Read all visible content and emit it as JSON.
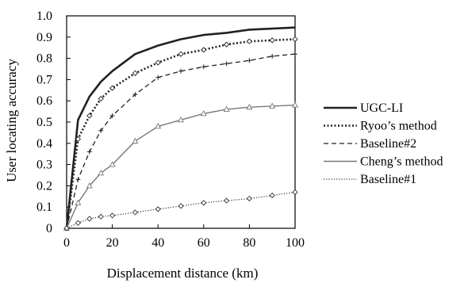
{
  "chart_data": {
    "type": "line",
    "title": "",
    "xlabel": "Displacement distance (km)",
    "ylabel": "User locating accuracy",
    "xlim": [
      0,
      100
    ],
    "ylim": [
      0,
      1.0
    ],
    "x_ticks": [
      "0",
      "20",
      "40",
      "60",
      "80",
      "100"
    ],
    "y_ticks": [
      "0",
      "0.1",
      "0.2",
      "0.3",
      "0.4",
      "0.5",
      "0.6",
      "0.7",
      "0.8",
      "0.9",
      "1.0"
    ],
    "grid": false,
    "legend_position": "right",
    "series": [
      {
        "name": "UGC-LI",
        "style": "solid-thick",
        "color": "#222222",
        "marker": "none",
        "x": [
          0,
          5,
          10,
          15,
          20,
          30,
          40,
          50,
          60,
          70,
          80,
          90,
          100
        ],
        "y": [
          0,
          0.51,
          0.62,
          0.69,
          0.74,
          0.82,
          0.86,
          0.89,
          0.91,
          0.92,
          0.935,
          0.94,
          0.945
        ]
      },
      {
        "name": "Ryoo’s method",
        "style": "dotted-thick",
        "color": "#222222",
        "marker": "diamond",
        "x": [
          0,
          5,
          10,
          15,
          20,
          30,
          40,
          50,
          60,
          70,
          80,
          90,
          100
        ],
        "y": [
          0,
          0.42,
          0.53,
          0.61,
          0.66,
          0.73,
          0.78,
          0.82,
          0.84,
          0.865,
          0.88,
          0.885,
          0.89
        ]
      },
      {
        "name": "Baseline#2",
        "style": "dashed",
        "color": "#222222",
        "marker": "plus",
        "x": [
          0,
          5,
          10,
          15,
          20,
          30,
          40,
          50,
          60,
          70,
          80,
          90,
          100
        ],
        "y": [
          0,
          0.23,
          0.36,
          0.46,
          0.53,
          0.63,
          0.71,
          0.74,
          0.76,
          0.775,
          0.79,
          0.81,
          0.82
        ]
      },
      {
        "name": "Cheng’s method",
        "style": "solid-thin",
        "color": "#777777",
        "marker": "triangle",
        "x": [
          0,
          5,
          10,
          15,
          20,
          30,
          40,
          50,
          60,
          70,
          80,
          90,
          100
        ],
        "y": [
          0,
          0.12,
          0.2,
          0.26,
          0.3,
          0.41,
          0.48,
          0.51,
          0.54,
          0.56,
          0.57,
          0.575,
          0.58
        ]
      },
      {
        "name": "Baseline#1",
        "style": "dotted-thin",
        "color": "#333333",
        "marker": "diamond",
        "x": [
          0,
          5,
          10,
          15,
          20,
          30,
          40,
          50,
          60,
          70,
          80,
          90,
          100
        ],
        "y": [
          0,
          0.025,
          0.045,
          0.055,
          0.06,
          0.075,
          0.09,
          0.105,
          0.12,
          0.13,
          0.14,
          0.155,
          0.17
        ]
      }
    ]
  }
}
